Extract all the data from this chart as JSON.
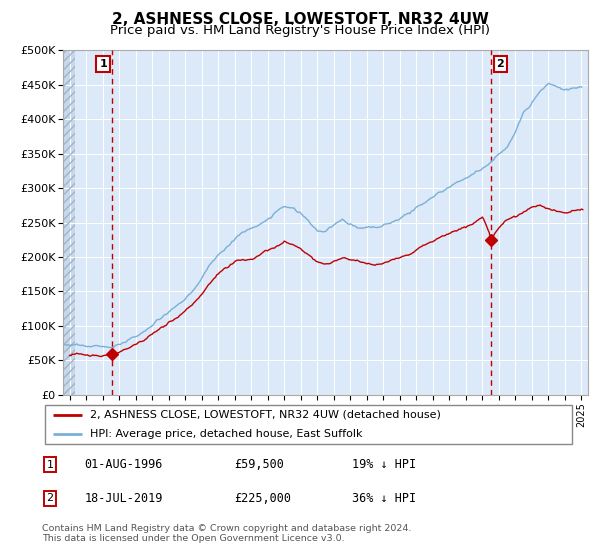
{
  "title": "2, ASHNESS CLOSE, LOWESTOFT, NR32 4UW",
  "subtitle": "Price paid vs. HM Land Registry's House Price Index (HPI)",
  "ylim": [
    0,
    500000
  ],
  "yticks": [
    0,
    50000,
    100000,
    150000,
    200000,
    250000,
    300000,
    350000,
    400000,
    450000,
    500000
  ],
  "xlim_start": 1993.6,
  "xlim_end": 2025.4,
  "plot_bg": "#dce9f8",
  "hatch_bg": "#c8d8ea",
  "grid_color": "#ffffff",
  "red_line_color": "#c00000",
  "blue_line_color": "#7ab0d8",
  "dot1_x": 1996.58,
  "dot1_y": 59500,
  "dot2_x": 2019.54,
  "dot2_y": 225000,
  "vline1_x": 1996.58,
  "vline2_x": 2019.54,
  "legend_red": "2, ASHNESS CLOSE, LOWESTOFT, NR32 4UW (detached house)",
  "legend_blue": "HPI: Average price, detached house, East Suffolk",
  "table_rows": [
    {
      "num": "1",
      "date": "01-AUG-1996",
      "price": "£59,500",
      "hpi": "19% ↓ HPI"
    },
    {
      "num": "2",
      "date": "18-JUL-2019",
      "price": "£225,000",
      "hpi": "36% ↓ HPI"
    }
  ],
  "footer": "Contains HM Land Registry data © Crown copyright and database right 2024.\nThis data is licensed under the Open Government Licence v3.0.",
  "title_fontsize": 11,
  "subtitle_fontsize": 9.5,
  "hatch_end_year": 1994.3
}
